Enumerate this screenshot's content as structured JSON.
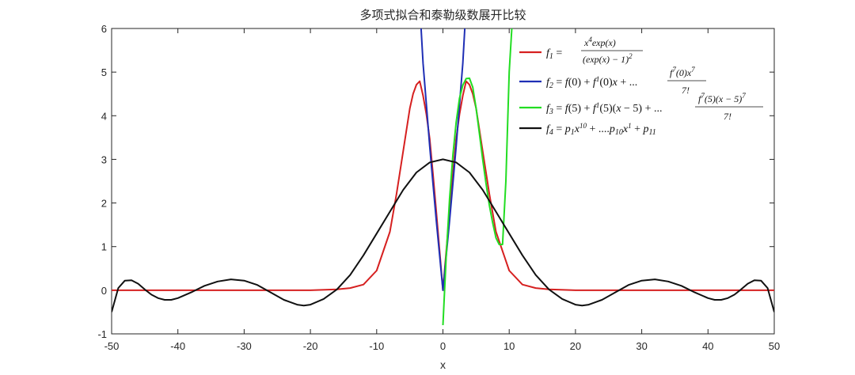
{
  "chart_data": {
    "type": "line",
    "title": "多项式拟合和泰勒级数展开比较",
    "xlabel": "x",
    "ylabel": "",
    "xlim": [
      -50,
      50
    ],
    "ylim": [
      -1,
      6
    ],
    "xticks": [
      "-50",
      "-40",
      "-30",
      "-20",
      "-10",
      "0",
      "10",
      "20",
      "30",
      "40",
      "50"
    ],
    "yticks": [
      "-1",
      "0",
      "1",
      "2",
      "3",
      "4",
      "5",
      "6"
    ],
    "grid": false,
    "legend_position": "top-right",
    "series": [
      {
        "name": "f1 = x^4 exp(x) / (exp(x) - 1)^2",
        "color": "#d62020",
        "x": [
          -50,
          -30,
          -20,
          -16,
          -14,
          -12,
          -10,
          -8,
          -7,
          -6,
          -5,
          -4.5,
          -4,
          -3.5,
          -3,
          -2.5,
          -2,
          -1.5,
          -1,
          -0.5,
          0,
          0.5,
          1,
          1.5,
          2,
          2.5,
          3,
          3.5,
          4,
          4.5,
          5,
          6,
          7,
          8,
          10,
          12,
          14,
          16,
          20,
          30,
          50
        ],
        "y": [
          0,
          0,
          0,
          0.02,
          0.05,
          0.13,
          0.45,
          1.34,
          2.21,
          3.19,
          4.17,
          4.5,
          4.71,
          4.79,
          4.46,
          4.03,
          3.47,
          2.67,
          1.8,
          0.9,
          0,
          0.9,
          1.8,
          2.67,
          3.47,
          4.03,
          4.46,
          4.79,
          4.71,
          4.5,
          4.17,
          3.19,
          2.21,
          1.34,
          0.45,
          0.13,
          0.05,
          0.02,
          0,
          0,
          0
        ]
      },
      {
        "name": "f2 = f(0) + f1(0)x + ... f7(0)x^7 / 7!",
        "color": "#1f2fb5",
        "x": [
          -3.3,
          -3,
          -2.5,
          -2,
          -1.5,
          -1,
          -0.5,
          0,
          0.5,
          1,
          1.5,
          2,
          2.5,
          3,
          3.3
        ],
        "y": [
          6,
          5.2,
          4.25,
          3.3,
          2.45,
          1.6,
          0.8,
          0,
          0.8,
          1.6,
          2.45,
          3.3,
          4.25,
          5.2,
          6
        ]
      },
      {
        "name": "f3 = f(5) + f1(5)(x-5) + ... f7(5)(x-5)^7 / 7!",
        "color": "#22dd22",
        "x": [
          0,
          0.5,
          1,
          1.5,
          2,
          2.5,
          3,
          3.5,
          4,
          4.5,
          5,
          5.5,
          6,
          6.5,
          7,
          7.5,
          8,
          8.5,
          9,
          9.5,
          10,
          10.4
        ],
        "y": [
          -0.8,
          0.8,
          2.1,
          3.1,
          3.85,
          4.4,
          4.7,
          4.85,
          4.86,
          4.65,
          4.17,
          3.6,
          3.0,
          2.45,
          1.95,
          1.55,
          1.2,
          1.05,
          1.05,
          2.5,
          5.0,
          6
        ]
      },
      {
        "name": "f4 = p1x^10 + ....p10x^1 + p11",
        "color": "#111111",
        "x": [
          -50,
          -49,
          -48,
          -47,
          -46,
          -45,
          -44,
          -43,
          -42,
          -41,
          -40,
          -38,
          -36,
          -34,
          -32,
          -30,
          -28,
          -26,
          -24,
          -22,
          -21,
          -20,
          -18,
          -16,
          -14,
          -12,
          -10,
          -8,
          -6,
          -4,
          -2,
          0,
          2,
          4,
          6,
          8,
          10,
          12,
          14,
          16,
          18,
          20,
          21,
          22,
          24,
          26,
          28,
          30,
          32,
          34,
          36,
          38,
          40,
          41,
          42,
          43,
          44,
          45,
          46,
          47,
          48,
          49,
          50
        ],
        "y": [
          -0.5,
          0.05,
          0.22,
          0.23,
          0.15,
          0.02,
          -0.1,
          -0.18,
          -0.22,
          -0.22,
          -0.18,
          -0.05,
          0.1,
          0.2,
          0.25,
          0.22,
          0.12,
          -0.05,
          -0.22,
          -0.33,
          -0.35,
          -0.33,
          -0.2,
          0.02,
          0.35,
          0.8,
          1.3,
          1.8,
          2.3,
          2.7,
          2.93,
          3.0,
          2.93,
          2.7,
          2.3,
          1.8,
          1.3,
          0.8,
          0.35,
          0.02,
          -0.2,
          -0.33,
          -0.35,
          -0.33,
          -0.22,
          -0.05,
          0.12,
          0.22,
          0.25,
          0.2,
          0.1,
          -0.05,
          -0.18,
          -0.22,
          -0.22,
          -0.18,
          -0.1,
          0.02,
          0.15,
          0.23,
          0.22,
          0.05,
          -0.5
        ]
      }
    ]
  }
}
